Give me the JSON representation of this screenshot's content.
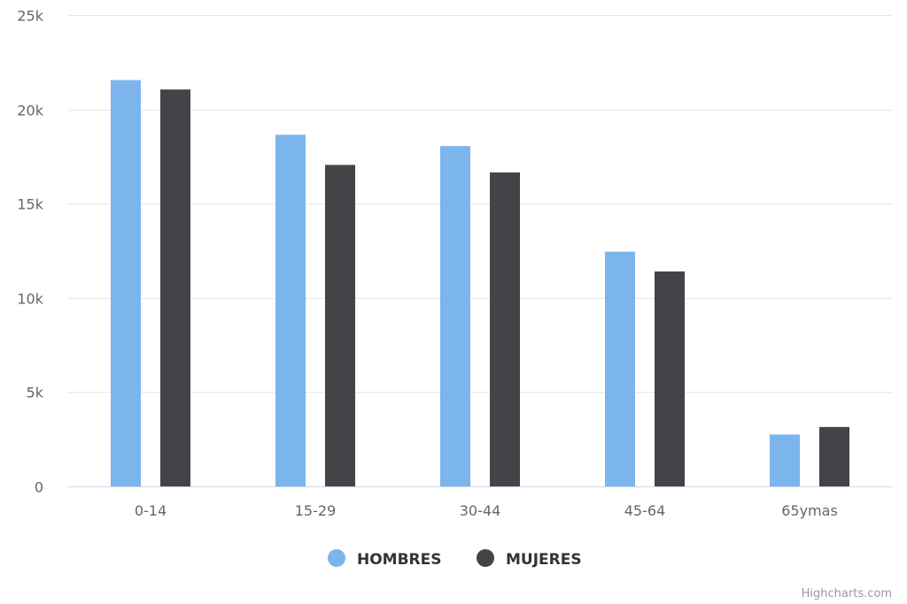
{
  "chart_data": {
    "type": "bar",
    "title": "",
    "xlabel": "",
    "ylabel": "",
    "categories": [
      "0-14",
      "15-29",
      "30-44",
      "45-64",
      "65ymas"
    ],
    "series": [
      {
        "name": "HOMBRES",
        "color": "#7cb5ec",
        "values": [
          21550,
          18650,
          18050,
          12450,
          2750
        ]
      },
      {
        "name": "MUJERES",
        "color": "#434348",
        "values": [
          21050,
          17050,
          16650,
          11400,
          3150
        ]
      }
    ],
    "ylim": [
      0,
      25000
    ],
    "yticks": [
      0,
      5000,
      10000,
      15000,
      20000,
      25000
    ],
    "ytick_labels": [
      "0",
      "5k",
      "10k",
      "15k",
      "20k",
      "25k"
    ],
    "grid": true,
    "legend_position": "bottom-center"
  },
  "credits": "Highcharts.com"
}
